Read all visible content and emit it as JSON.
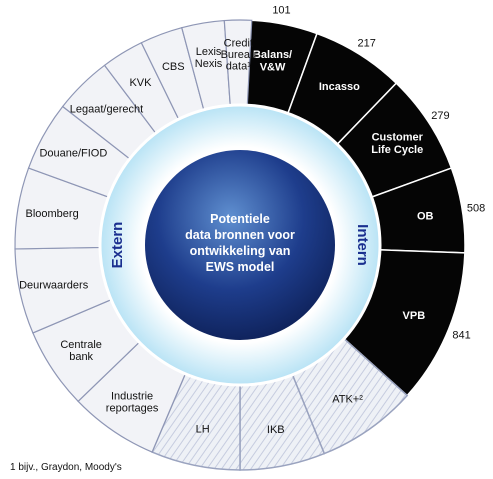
{
  "center": {
    "lines": [
      "Potentiele",
      "data bronnen voor",
      "ontwikkeling van",
      "EWS model"
    ]
  },
  "ring": {
    "left_label": "Extern",
    "right_label": "Intern"
  },
  "internal_segments": [
    {
      "id": "balans",
      "lines": [
        "Balans/",
        "V&W"
      ],
      "count": "101",
      "style": "black"
    },
    {
      "id": "incasso",
      "lines": [
        "Incasso"
      ],
      "count": "217",
      "style": "black"
    },
    {
      "id": "clc",
      "lines": [
        "Customer",
        "Life Cycle"
      ],
      "count": "279",
      "style": "black"
    },
    {
      "id": "ob",
      "lines": [
        "OB"
      ],
      "count": "508",
      "style": "black"
    },
    {
      "id": "vpb",
      "lines": [
        "VPB"
      ],
      "count": "841",
      "style": "black"
    },
    {
      "id": "atk",
      "lines": [
        "ATK+²"
      ],
      "count": "",
      "style": "light"
    },
    {
      "id": "ikb",
      "lines": [
        "IKB"
      ],
      "count": "",
      "style": "light"
    },
    {
      "id": "lh",
      "lines": [
        "LH"
      ],
      "count": "",
      "style": "light"
    }
  ],
  "external_segments": [
    {
      "id": "industrie",
      "lines": [
        "Industrie",
        "reportages"
      ]
    },
    {
      "id": "centrale",
      "lines": [
        "Centrale",
        "bank"
      ]
    },
    {
      "id": "deurwaarders",
      "lines": [
        "Deurwaarders"
      ]
    },
    {
      "id": "bloomberg",
      "lines": [
        "Bloomberg"
      ]
    },
    {
      "id": "douane",
      "lines": [
        "Douane/FIOD"
      ]
    },
    {
      "id": "legaat",
      "lines": [
        "Legaat/gerecht"
      ]
    },
    {
      "id": "kvk",
      "lines": [
        "KVK"
      ]
    },
    {
      "id": "cbs",
      "lines": [
        "CBS"
      ]
    },
    {
      "id": "lexis",
      "lines": [
        "Lexis",
        "Nexis"
      ]
    },
    {
      "id": "credit",
      "lines": [
        "Credit",
        "Bureau",
        "data¹"
      ]
    }
  ],
  "footnote": "1 bijv., Graydon, Moody's",
  "colors": {
    "internal_fill": "#050505",
    "light_fill": "#eef1f6",
    "external_fill": "#f2f3f7",
    "ring_fill": "#dff2fb",
    "center_fill": "#1e3d8c",
    "accent_blue": "#1a2f8f"
  }
}
